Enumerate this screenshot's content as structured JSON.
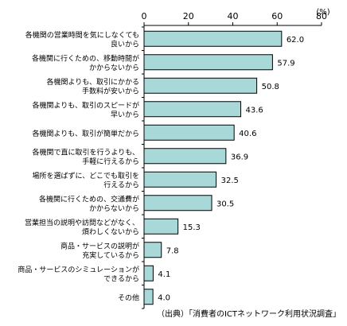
{
  "chart_data": {
    "type": "bar",
    "orientation": "horizontal",
    "categories": [
      [
        "各機関の営業時間を気にしなくても",
        "良いから"
      ],
      [
        "各機関に行くための、移動時間が",
        "かからないから"
      ],
      [
        "各機関よりも、取引にかかる",
        "手数料が安いから"
      ],
      [
        "各機関よりも、取引のスピードが",
        "早いから"
      ],
      [
        "各機関よりも、取引が簡単だから"
      ],
      [
        "各機関で直に取引を行うよりも、",
        "手軽に行えるから"
      ],
      [
        "場所を選ばずに、どこでも取引を",
        "行えるから"
      ],
      [
        "各機関に行くための、交通費が",
        "かからないから"
      ],
      [
        "営業担当の説明や訪問などがなく、",
        "煩わしくないから"
      ],
      [
        "商品・サービスの説明が",
        "充実しているから"
      ],
      [
        "商品・サービスのシミュレーションが",
        "できるから"
      ],
      [
        "その他"
      ]
    ],
    "values": [
      62.0,
      57.9,
      50.8,
      43.6,
      40.6,
      36.9,
      32.5,
      30.5,
      15.3,
      7.8,
      4.1,
      4.0
    ],
    "value_labels": [
      "62.0",
      "57.9",
      "50.8",
      "43.6",
      "40.6",
      "36.9",
      "32.5",
      "30.5",
      "15.3",
      "7.8",
      "4.1",
      "4.0"
    ],
    "x_ticks": [
      "0",
      "20",
      "40",
      "60",
      "80"
    ],
    "xlim": [
      0,
      80
    ],
    "unit": "(%)",
    "bar_color": "#a8d8d8",
    "grid": false
  },
  "source": "（出典）「消費者のICTネットワーク利用状況調査」"
}
